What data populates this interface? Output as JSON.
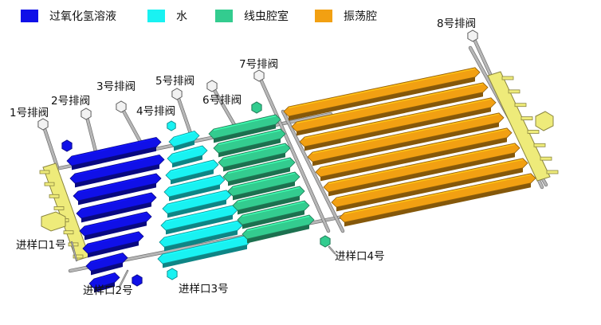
{
  "legend": [
    {
      "label": "过氧化氢溶液",
      "color": "#1010e8"
    },
    {
      "label": "水",
      "color": "#19f2f2"
    },
    {
      "label": "线虫腔室",
      "color": "#33cc8f"
    },
    {
      "label": "振荡腔",
      "color": "#f2a012"
    }
  ],
  "valves": [
    "1号排阀",
    "2号排阀",
    "3号排阀",
    "4号排阀",
    "5号排阀",
    "6号排阀",
    "7号排阀",
    "8号排阀"
  ],
  "inlets": [
    "进样口1号",
    "进样口2号",
    "进样口3号",
    "进样口4号"
  ],
  "colors": {
    "structure": "#b7b7b7",
    "structure_edge": "#6e6e6e",
    "manifold": "#eeeb7a",
    "manifold_edge": "#8a8540",
    "valve_cap": "#f2f2f2"
  }
}
